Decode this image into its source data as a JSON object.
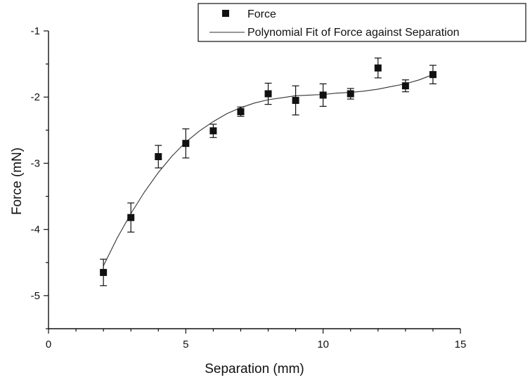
{
  "chart_data": {
    "type": "scatter",
    "title": "",
    "xlabel": "Separation (mm)",
    "ylabel": "Force (mN)",
    "xlim": [
      0,
      15
    ],
    "ylim": [
      -5.5,
      -1
    ],
    "xticks": [
      "0",
      "5",
      "10",
      "15"
    ],
    "yticks": [
      "-1",
      "-2",
      "-3",
      "-4",
      "-5"
    ],
    "grid": false,
    "legend_position": "top-right",
    "series": [
      {
        "name": "Force",
        "marker": "square",
        "color": "#111111",
        "x": [
          2,
          3,
          4,
          5,
          6,
          7,
          8,
          9,
          10,
          11,
          12,
          13,
          14
        ],
        "y": [
          -4.65,
          -3.82,
          -2.9,
          -2.7,
          -2.51,
          -2.22,
          -1.95,
          -2.05,
          -1.97,
          -1.95,
          -1.56,
          -1.83,
          -1.66
        ],
        "yerr": [
          0.2,
          0.22,
          0.17,
          0.22,
          0.1,
          0.07,
          0.16,
          0.22,
          0.17,
          0.08,
          0.15,
          0.09,
          0.14
        ]
      },
      {
        "name": "Polynomial Fit of Force against Separation",
        "line": "solid",
        "color": "#333333",
        "x": [
          2.0,
          2.5,
          3.0,
          3.5,
          4.0,
          4.5,
          5.0,
          5.5,
          6.0,
          6.5,
          7.0,
          7.5,
          8.0,
          8.5,
          9.0,
          9.5,
          10.0,
          10.5,
          11.0,
          11.5,
          12.0,
          12.5,
          13.0,
          13.5,
          14.0
        ],
        "y": [
          -4.55,
          -4.13,
          -3.76,
          -3.43,
          -3.14,
          -2.89,
          -2.68,
          -2.51,
          -2.37,
          -2.25,
          -2.16,
          -2.09,
          -2.04,
          -2.01,
          -1.98,
          -1.97,
          -1.96,
          -1.94,
          -1.93,
          -1.91,
          -1.88,
          -1.84,
          -1.8,
          -1.74,
          -1.66
        ]
      }
    ]
  }
}
